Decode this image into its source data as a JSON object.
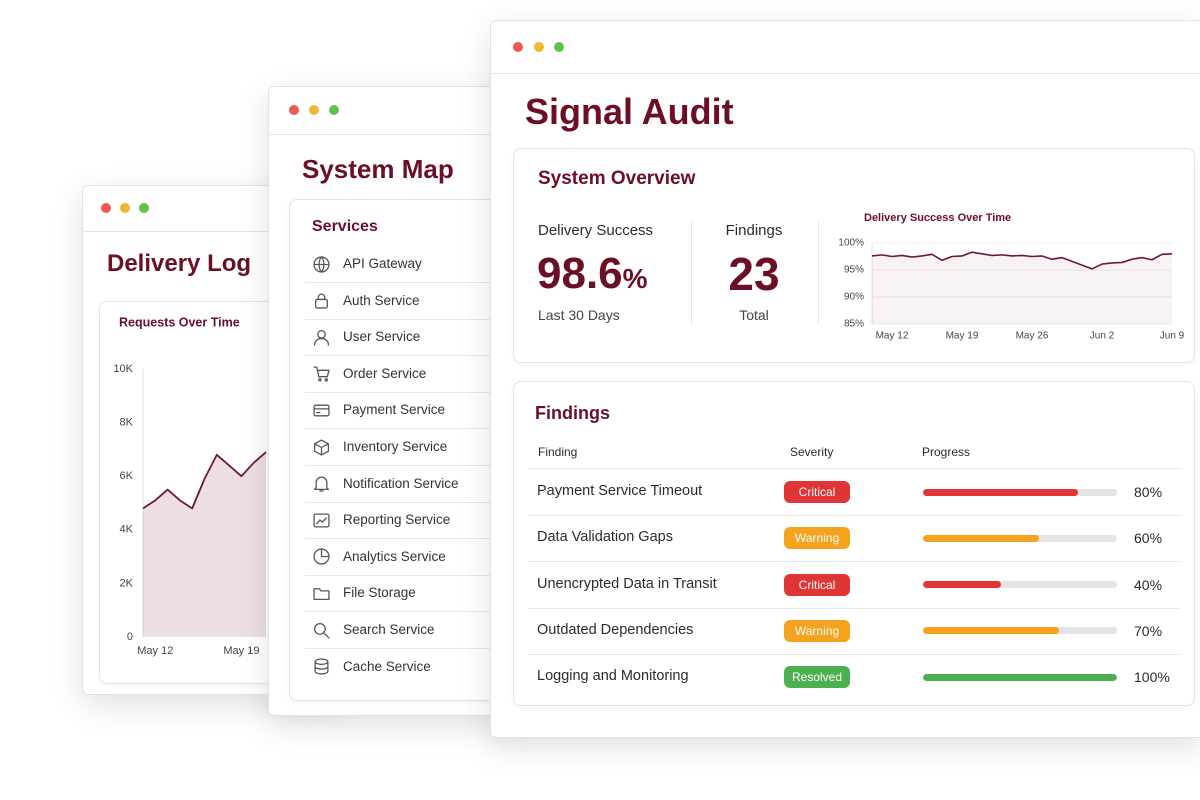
{
  "delivery_log": {
    "title": "Delivery Log",
    "chart": {
      "type": "line",
      "title": "Requests Over Time",
      "categories": [
        null,
        "May 12",
        null,
        null,
        null,
        null,
        null,
        null,
        "May 19",
        null,
        null
      ],
      "values": [
        4800,
        5100,
        5500,
        5100,
        4800,
        5900,
        6800,
        6400,
        6000,
        6500,
        6900
      ],
      "color": "#6b1a2e",
      "ylim": [
        0,
        10000
      ],
      "yticks": [
        0,
        {
          "value": 2000,
          "label": "2K"
        },
        {
          "value": 4000,
          "label": "4K"
        },
        {
          "value": 6000,
          "label": "6K"
        },
        {
          "value": 8000,
          "label": "8K"
        },
        {
          "value": 10000,
          "label": "10K"
        }
      ]
    }
  },
  "system_map": {
    "title": "System Map",
    "services_title": "Services",
    "services": [
      "API Gateway",
      "Auth Service",
      "User Service",
      "Order Service",
      "Payment Service",
      "Inventory Service",
      "Notification Service",
      "Reporting Service",
      "Analytics Service",
      "File Storage",
      "Search Service",
      "Cache Service"
    ]
  },
  "signal_audit": {
    "title": "Signal Audit",
    "overview": {
      "title": "System Overview",
      "delivery_success": {
        "label": "Delivery Success",
        "value": 98.6,
        "unit": "%",
        "period": "Last 30 Days"
      },
      "findings_count": {
        "label": "Findings",
        "value": 23,
        "caption": "Total"
      },
      "chart": {
        "type": "line",
        "title": "Delivery Success Over Time",
        "categories": [
          null,
          null,
          "May 12",
          null,
          null,
          null,
          null,
          null,
          null,
          "May 19",
          null,
          null,
          null,
          null,
          null,
          null,
          "May 26",
          null,
          null,
          null,
          null,
          null,
          null,
          "Jun 2",
          null,
          null,
          null,
          null,
          null,
          null,
          "Jun 9"
        ],
        "values": [
          97.6,
          97.8,
          97.5,
          97.7,
          97.4,
          97.6,
          97.9,
          96.8,
          97.5,
          97.6,
          98.3,
          98.0,
          97.7,
          97.8,
          97.6,
          97.7,
          97.5,
          97.6,
          97.0,
          97.3,
          96.6,
          95.9,
          95.2,
          96.1,
          96.3,
          96.4,
          97.0,
          97.3,
          96.9,
          97.9,
          98.0
        ],
        "color": "#6b1a2e",
        "ylim": [
          85,
          100
        ],
        "yticks": [
          {
            "value": 100,
            "label": "100%"
          },
          {
            "value": 95,
            "label": "95%"
          },
          {
            "value": 90,
            "label": "90%"
          },
          {
            "value": 85,
            "label": "85%"
          }
        ]
      }
    },
    "findings": {
      "title": "Findings",
      "columns": [
        "Finding",
        "Severity",
        "Progress"
      ],
      "progress_lim": [
        0,
        100
      ],
      "severity_colors": {
        "Critical": "#e03535",
        "Warning": "#f5a21e",
        "Resolved": "#4caf50"
      },
      "rows": [
        {
          "finding": "Payment Service Timeout",
          "severity": "Critical",
          "progress": 80,
          "progress_label": "80%"
        },
        {
          "finding": "Data Validation Gaps",
          "severity": "Warning",
          "progress": 60,
          "progress_label": "60%"
        },
        {
          "finding": "Unencrypted Data in Transit",
          "severity": "Critical",
          "progress": 40,
          "progress_label": "40%"
        },
        {
          "finding": "Outdated Dependencies",
          "severity": "Warning",
          "progress": 70,
          "progress_label": "70%"
        },
        {
          "finding": "Logging and Monitoring",
          "severity": "Resolved",
          "progress": 100,
          "progress_label": "100%"
        }
      ]
    }
  }
}
